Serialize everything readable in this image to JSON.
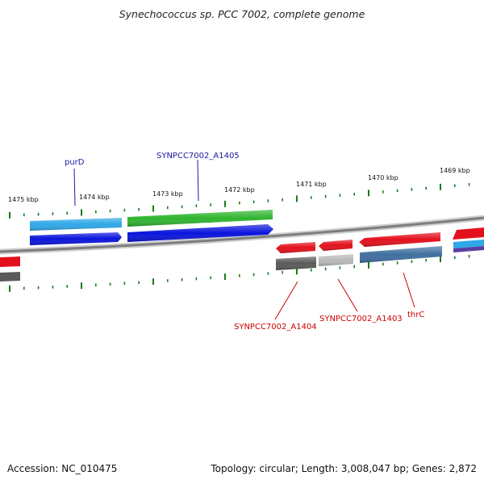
{
  "title": "Synechococcus sp. PCC 7002, complete genome",
  "footer": {
    "accession": "Accession: NC_010475",
    "summary": "Topology: circular; Length: 3,008,047 bp; Genes: 2,872"
  },
  "ticks": [
    {
      "label": "1475 kbp"
    },
    {
      "label": "1474 kbp"
    },
    {
      "label": "1473 kbp"
    },
    {
      "label": "1472 kbp"
    },
    {
      "label": "1471 kbp"
    },
    {
      "label": "1470 kbp"
    },
    {
      "label": "1469 kbp"
    }
  ],
  "gene_labels": {
    "purD": "purD",
    "A1405": "SYNPCC7002_A1405",
    "A1404": "SYNPCC7002_A1404",
    "A1403": "SYNPCC7002_A1403",
    "thrC": "thrC"
  },
  "colors": {
    "backbone": "#8a8a8a",
    "tick": "#1a7a1a",
    "red_gene": "#e3101c",
    "blue_cds": "#0a14dc",
    "cyan_gene": "#2fa8e8",
    "green_gene": "#2fb52f",
    "steel_cds": "#3f6fa0",
    "dark_gray_cds": "#5a5a5a",
    "light_gray_cds": "#b9b9b9",
    "purple_cds": "#5a3fa0",
    "label_blue": "#1a1aa0",
    "label_red": "#cc0000"
  }
}
